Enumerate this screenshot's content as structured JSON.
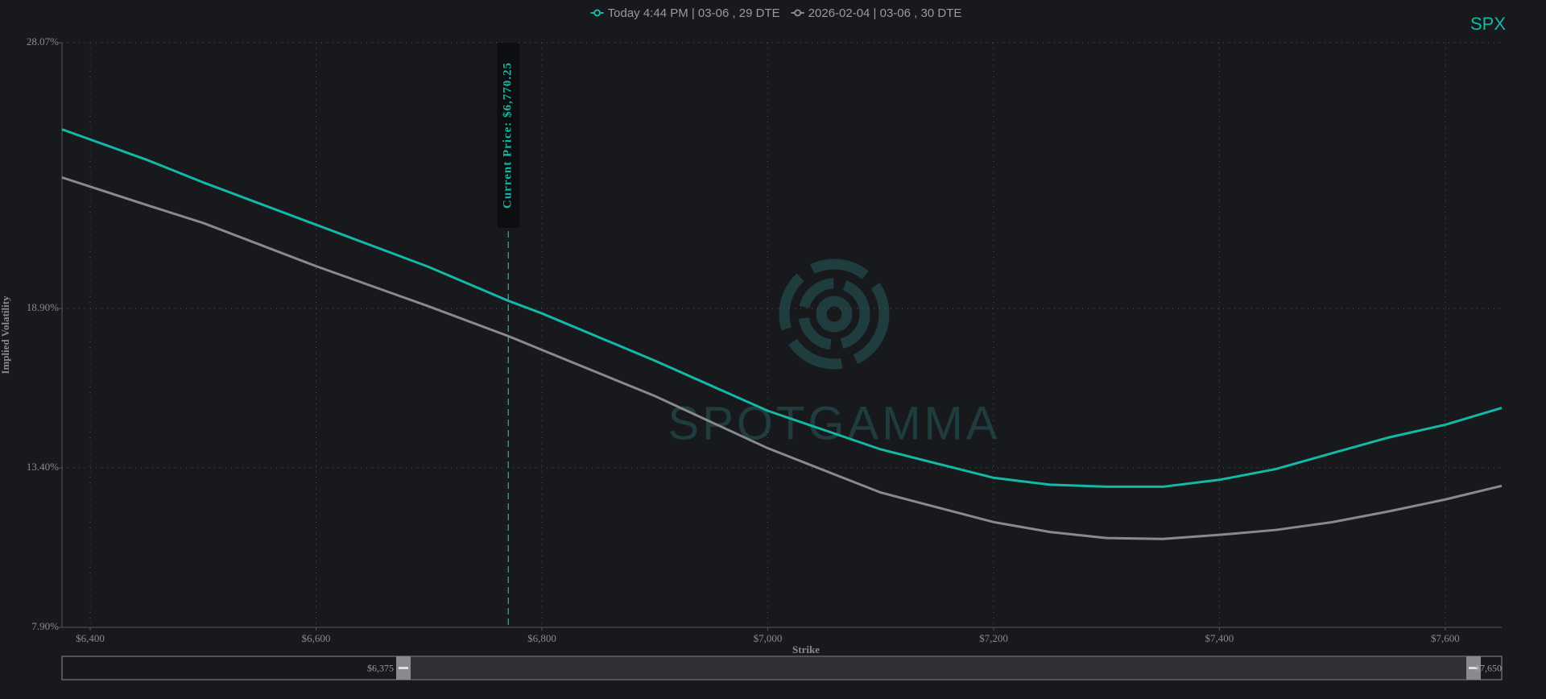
{
  "chart_data": {
    "type": "line",
    "symbol": "SPX",
    "watermark": "SPOTGAMMA",
    "x_label": "Strike",
    "y_label": "Implied Volatility",
    "x": [
      6375,
      6450,
      6500,
      6600,
      6700,
      6770,
      6800,
      6900,
      7000,
      7100,
      7200,
      7250,
      7300,
      7350,
      7400,
      7450,
      7500,
      7550,
      7600,
      7650
    ],
    "series": [
      {
        "name": "Today 4:44 PM | 03-06 , 29 DTE",
        "color": "#14b8a6",
        "values": [
          25.08,
          24.03,
          23.25,
          21.79,
          20.33,
          19.17,
          18.73,
          17.1,
          15.37,
          14.04,
          13.06,
          12.82,
          12.75,
          12.75,
          12.99,
          13.36,
          13.91,
          14.45,
          14.89,
          15.47
        ]
      },
      {
        "name": "2026-02-04 | 03-06 , 30 DTE",
        "color": "#8a8a8e",
        "values": [
          23.42,
          22.47,
          21.85,
          20.36,
          18.97,
          17.95,
          17.47,
          15.88,
          14.08,
          12.55,
          11.53,
          11.19,
          10.98,
          10.95,
          11.09,
          11.26,
          11.53,
          11.9,
          12.31,
          12.78
        ]
      }
    ],
    "xlim": [
      6375,
      7650
    ],
    "xticks": [
      {
        "value": 6400,
        "label": "$6,400"
      },
      {
        "value": 6600,
        "label": "$6,600"
      },
      {
        "value": 6800,
        "label": "$6,800"
      },
      {
        "value": 7000,
        "label": "$7,000"
      },
      {
        "value": 7200,
        "label": "$7,200"
      },
      {
        "value": 7400,
        "label": "$7,400"
      },
      {
        "value": 7600,
        "label": "$7,600"
      }
    ],
    "ylim": [
      7.9,
      28.07
    ],
    "yticks": [
      {
        "value": 7.9,
        "label": "7.90%"
      },
      {
        "value": 13.4,
        "label": "13.40%"
      },
      {
        "value": 18.9,
        "label": "18.90%"
      },
      {
        "value": 28.07,
        "label": "28.07%"
      }
    ],
    "grid": true,
    "annotation": {
      "x": 6770.25,
      "label": "Current Price: $6,770.25"
    },
    "range_slider": [
      {
        "value": 6375,
        "label": "$6,375"
      },
      {
        "value": 7650,
        "label": "$7,650"
      }
    ]
  }
}
